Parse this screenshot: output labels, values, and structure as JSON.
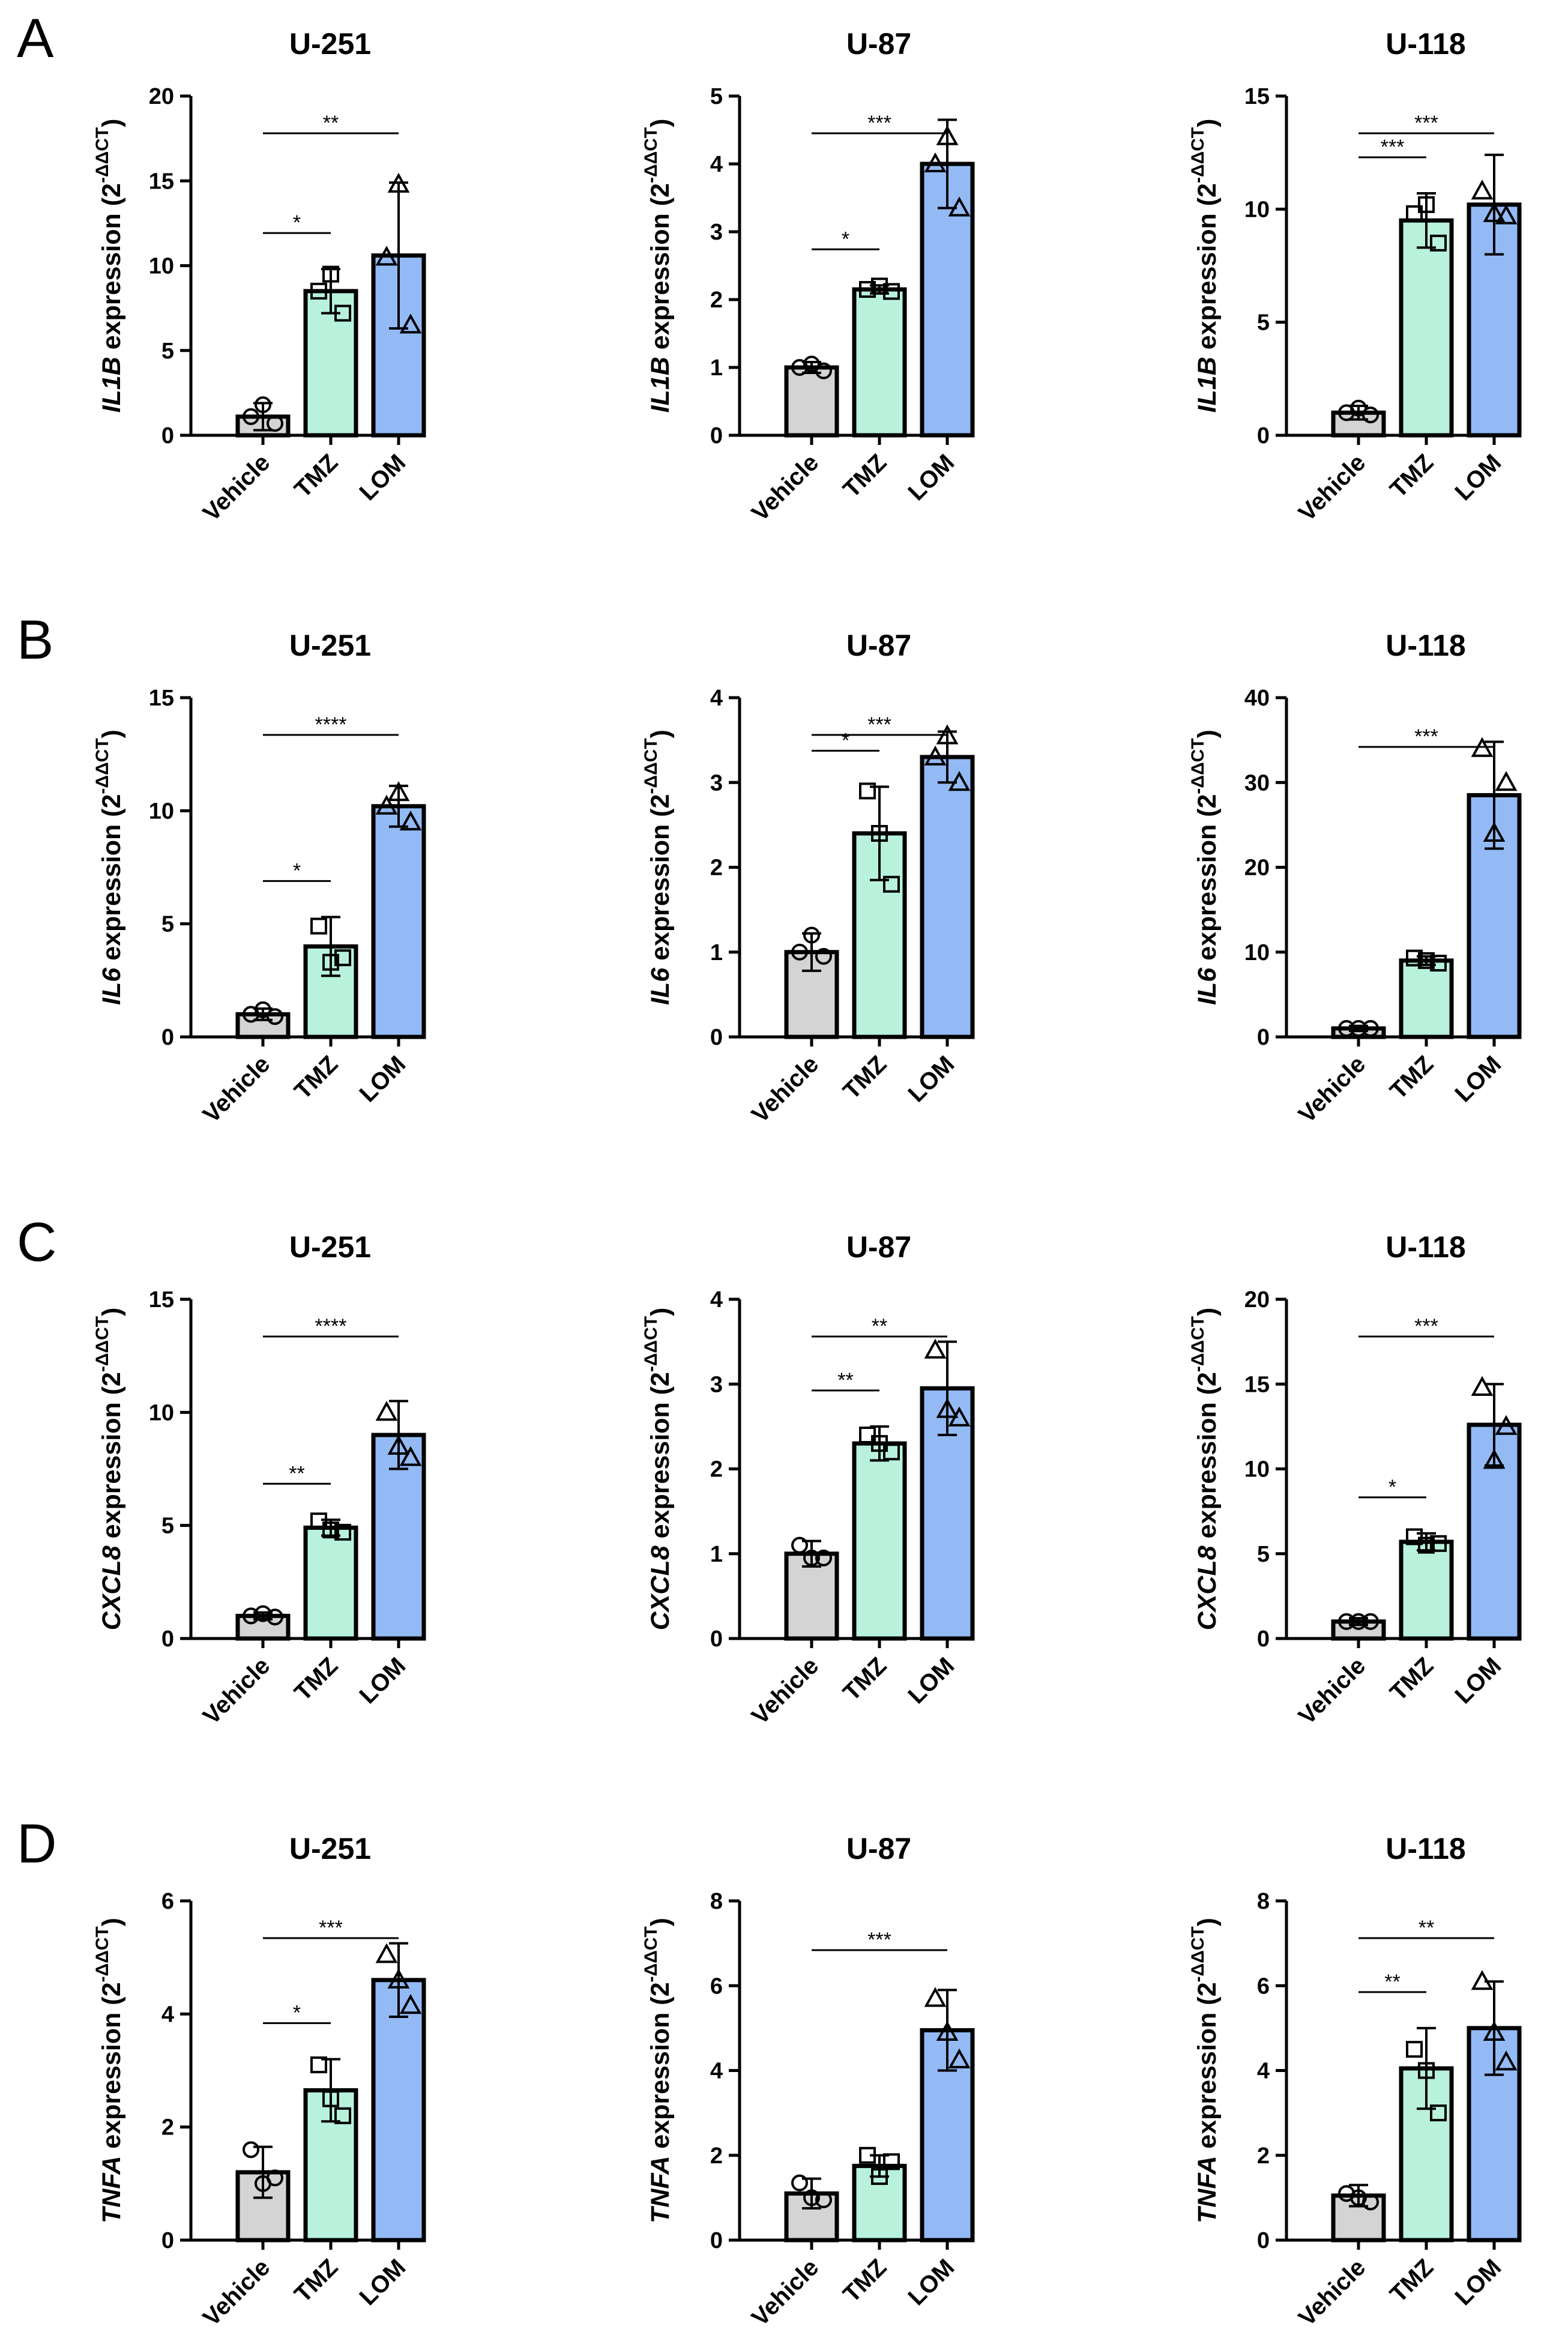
{
  "figure": {
    "panel_letters": [
      "A",
      "B",
      "C",
      "D"
    ],
    "categories": [
      "Vehicle",
      "TMZ",
      "LOM"
    ],
    "colors": {
      "Vehicle": "#d4d4d4",
      "TMZ": "#b8f2dc",
      "LOM": "#93baf5"
    },
    "marker_shapes": {
      "Vehicle": "circle",
      "TMZ": "square",
      "LOM": "triangle"
    },
    "ylabel_suffix": " expression (2",
    "ylabel_sup": "-ΔΔCT",
    "ylabel_close": ")"
  },
  "chart_data": [
    {
      "panel": "A",
      "type": "bar",
      "title": "U-251",
      "gene": "IL1B",
      "ylim": [
        0,
        20
      ],
      "yticks": [
        0,
        5,
        10,
        15,
        20
      ],
      "categories": [
        "Vehicle",
        "TMZ",
        "LOM"
      ],
      "values": [
        1.1,
        8.5,
        10.6
      ],
      "errors": [
        0.8,
        1.3,
        4.3
      ],
      "points": [
        [
          1.1,
          1.8,
          0.7
        ],
        [
          8.5,
          9.5,
          7.2
        ],
        [
          10.5,
          14.8,
          6.5
        ]
      ],
      "significance": [
        {
          "pair": [
            0,
            1
          ],
          "label": "*"
        },
        {
          "pair": [
            0,
            2
          ],
          "label": "**"
        }
      ]
    },
    {
      "panel": "A",
      "type": "bar",
      "title": "U-87",
      "gene": "IL1B",
      "ylim": [
        0,
        5
      ],
      "yticks": [
        0,
        1,
        2,
        3,
        4,
        5
      ],
      "categories": [
        "Vehicle",
        "TMZ",
        "LOM"
      ],
      "values": [
        1.0,
        2.15,
        4.0
      ],
      "errors": [
        0.08,
        0.06,
        0.65
      ],
      "points": [
        [
          1.0,
          1.05,
          0.95
        ],
        [
          2.15,
          2.2,
          2.12
        ],
        [
          4.0,
          4.4,
          3.35
        ]
      ],
      "significance": [
        {
          "pair": [
            0,
            1
          ],
          "label": "*"
        },
        {
          "pair": [
            0,
            2
          ],
          "label": "***"
        }
      ]
    },
    {
      "panel": "A",
      "type": "bar",
      "title": "U-118",
      "gene": "IL1B",
      "ylim": [
        0,
        15
      ],
      "yticks": [
        0,
        5,
        10,
        15
      ],
      "categories": [
        "Vehicle",
        "TMZ",
        "LOM"
      ],
      "values": [
        1.0,
        9.5,
        10.2
      ],
      "errors": [
        0.3,
        1.2,
        2.2
      ],
      "points": [
        [
          1.0,
          1.2,
          0.9
        ],
        [
          9.8,
          10.2,
          8.5
        ],
        [
          10.8,
          9.8,
          9.7
        ]
      ],
      "significance": [
        {
          "pair": [
            0,
            1
          ],
          "label": "***"
        },
        {
          "pair": [
            0,
            2
          ],
          "label": "***"
        }
      ]
    },
    {
      "panel": "B",
      "type": "bar",
      "title": "U-251",
      "gene": "IL6",
      "ylim": [
        0,
        15
      ],
      "yticks": [
        0,
        5,
        10,
        15
      ],
      "categories": [
        "Vehicle",
        "TMZ",
        "LOM"
      ],
      "values": [
        1.0,
        4.0,
        10.2
      ],
      "errors": [
        0.25,
        1.3,
        0.9
      ],
      "points": [
        [
          1.0,
          1.2,
          0.9
        ],
        [
          4.9,
          3.3,
          3.5
        ],
        [
          10.2,
          10.8,
          9.5
        ]
      ],
      "significance": [
        {
          "pair": [
            0,
            1
          ],
          "label": "*"
        },
        {
          "pair": [
            0,
            2
          ],
          "label": "****"
        }
      ]
    },
    {
      "panel": "B",
      "type": "bar",
      "title": "U-87",
      "gene": "IL6",
      "ylim": [
        0,
        4
      ],
      "yticks": [
        0,
        1,
        2,
        3,
        4
      ],
      "categories": [
        "Vehicle",
        "TMZ",
        "LOM"
      ],
      "values": [
        1.0,
        2.4,
        3.3
      ],
      "errors": [
        0.22,
        0.55,
        0.3
      ],
      "points": [
        [
          1.0,
          1.2,
          0.95
        ],
        [
          2.9,
          2.4,
          1.8
        ],
        [
          3.3,
          3.55,
          3.0
        ]
      ],
      "significance": [
        {
          "pair": [
            0,
            1
          ],
          "label": "*"
        },
        {
          "pair": [
            0,
            2
          ],
          "label": "***"
        }
      ]
    },
    {
      "panel": "B",
      "type": "bar",
      "title": "U-118",
      "gene": "IL6",
      "ylim": [
        0,
        40
      ],
      "yticks": [
        0,
        10,
        20,
        30,
        40
      ],
      "categories": [
        "Vehicle",
        "TMZ",
        "LOM"
      ],
      "values": [
        1.0,
        9.0,
        28.5
      ],
      "errors": [
        0.3,
        0.5,
        6.3
      ],
      "points": [
        [
          1.0,
          1.0,
          1.0
        ],
        [
          9.3,
          9.0,
          8.7
        ],
        [
          34.0,
          24.0,
          30.0
        ]
      ],
      "significance": [
        {
          "pair": [
            0,
            2
          ],
          "label": "***"
        }
      ]
    },
    {
      "panel": "C",
      "type": "bar",
      "title": "U-251",
      "gene": "CXCL8",
      "ylim": [
        0,
        15
      ],
      "yticks": [
        0,
        5,
        10,
        15
      ],
      "categories": [
        "Vehicle",
        "TMZ",
        "LOM"
      ],
      "values": [
        1.0,
        4.9,
        9.0
      ],
      "errors": [
        0.15,
        0.35,
        1.5
      ],
      "points": [
        [
          1.0,
          1.1,
          0.95
        ],
        [
          5.2,
          4.8,
          4.7
        ],
        [
          10.0,
          8.5,
          8.0
        ]
      ],
      "significance": [
        {
          "pair": [
            0,
            1
          ],
          "label": "**"
        },
        {
          "pair": [
            0,
            2
          ],
          "label": "****"
        }
      ]
    },
    {
      "panel": "C",
      "type": "bar",
      "title": "U-87",
      "gene": "CXCL8",
      "ylim": [
        0,
        4
      ],
      "yticks": [
        0,
        1,
        2,
        3,
        4
      ],
      "categories": [
        "Vehicle",
        "TMZ",
        "LOM"
      ],
      "values": [
        1.0,
        2.3,
        2.95
      ],
      "errors": [
        0.15,
        0.2,
        0.55
      ],
      "points": [
        [
          1.1,
          0.95,
          0.95
        ],
        [
          2.4,
          2.3,
          2.2
        ],
        [
          3.4,
          2.7,
          2.6
        ]
      ],
      "significance": [
        {
          "pair": [
            0,
            1
          ],
          "label": "**"
        },
        {
          "pair": [
            0,
            2
          ],
          "label": "**"
        }
      ]
    },
    {
      "panel": "C",
      "type": "bar",
      "title": "U-118",
      "gene": "CXCL8",
      "ylim": [
        0,
        20
      ],
      "yticks": [
        0,
        5,
        10,
        15,
        20
      ],
      "categories": [
        "Vehicle",
        "TMZ",
        "LOM"
      ],
      "values": [
        1.0,
        5.7,
        12.6
      ],
      "errors": [
        0.2,
        0.5,
        2.4
      ],
      "points": [
        [
          1.0,
          1.0,
          1.0
        ],
        [
          6.0,
          5.5,
          5.6
        ],
        [
          14.8,
          10.5,
          12.5
        ]
      ],
      "significance": [
        {
          "pair": [
            0,
            1
          ],
          "label": "*"
        },
        {
          "pair": [
            0,
            2
          ],
          "label": "***"
        }
      ]
    },
    {
      "panel": "D",
      "type": "bar",
      "title": "U-251",
      "gene": "TNFA",
      "ylim": [
        0,
        6
      ],
      "yticks": [
        0,
        2,
        4,
        6
      ],
      "categories": [
        "Vehicle",
        "TMZ",
        "LOM"
      ],
      "values": [
        1.2,
        2.65,
        4.6
      ],
      "errors": [
        0.45,
        0.55,
        0.65
      ],
      "points": [
        [
          1.6,
          1.0,
          1.1
        ],
        [
          3.1,
          2.5,
          2.2
        ],
        [
          5.05,
          4.6,
          4.15
        ]
      ],
      "significance": [
        {
          "pair": [
            0,
            1
          ],
          "label": "*"
        },
        {
          "pair": [
            0,
            2
          ],
          "label": "***"
        }
      ]
    },
    {
      "panel": "D",
      "type": "bar",
      "title": "U-87",
      "gene": "TNFA",
      "ylim": [
        0,
        8
      ],
      "yticks": [
        0,
        2,
        4,
        6,
        8
      ],
      "categories": [
        "Vehicle",
        "TMZ",
        "LOM"
      ],
      "values": [
        1.1,
        1.75,
        4.95
      ],
      "errors": [
        0.35,
        0.25,
        0.95
      ],
      "points": [
        [
          1.35,
          1.0,
          0.95
        ],
        [
          2.0,
          1.5,
          1.85
        ],
        [
          5.7,
          4.9,
          4.25
        ]
      ],
      "significance": [
        {
          "pair": [
            0,
            2
          ],
          "label": "***"
        }
      ]
    },
    {
      "panel": "D",
      "type": "bar",
      "title": "U-118",
      "gene": "TNFA",
      "ylim": [
        0,
        8
      ],
      "yticks": [
        0,
        2,
        4,
        6,
        8
      ],
      "categories": [
        "Vehicle",
        "TMZ",
        "LOM"
      ],
      "values": [
        1.05,
        4.05,
        5.0
      ],
      "errors": [
        0.25,
        0.95,
        1.1
      ],
      "points": [
        [
          1.1,
          1.0,
          0.9
        ],
        [
          4.5,
          4.0,
          3.0
        ],
        [
          6.1,
          4.9,
          4.2
        ]
      ],
      "significance": [
        {
          "pair": [
            0,
            1
          ],
          "label": "**"
        },
        {
          "pair": [
            0,
            2
          ],
          "label": "**"
        }
      ]
    }
  ]
}
